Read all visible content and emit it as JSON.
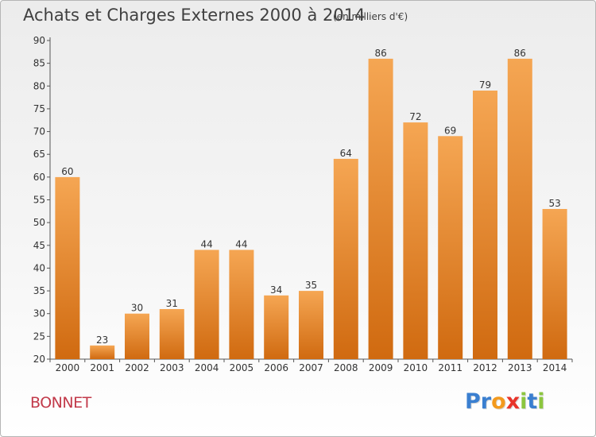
{
  "header": {
    "title": "Achats et Charges Externes 2000 à 2014",
    "subtitle": "(en milliers d'€)"
  },
  "footer": {
    "commune": "BONNET",
    "logo_letters": [
      "P",
      "r",
      "o",
      "x",
      "i",
      "t",
      "i"
    ]
  },
  "colors": {
    "bar_top": "#f5a653",
    "bar_bottom": "#d06a10",
    "title": "#404040",
    "commune": "#c23a4a",
    "logo": [
      "#3a7fd0",
      "#3a7fd0",
      "#f39a1e",
      "#e8342a",
      "#8cc63f",
      "#3a7fd0",
      "#8cc63f"
    ]
  },
  "chart_data": {
    "type": "bar",
    "title": "Achats et Charges Externes 2000 à 2014",
    "subtitle": "(en milliers d'€)",
    "categories": [
      "2000",
      "2001",
      "2002",
      "2003",
      "2004",
      "2005",
      "2006",
      "2007",
      "2008",
      "2009",
      "2010",
      "2011",
      "2012",
      "2013",
      "2014"
    ],
    "values": [
      60,
      23,
      30,
      31,
      44,
      44,
      34,
      35,
      64,
      86,
      72,
      69,
      79,
      86,
      53
    ],
    "ylim": [
      20,
      90
    ],
    "yticks": [
      20,
      25,
      30,
      35,
      40,
      45,
      50,
      55,
      60,
      65,
      70,
      75,
      80,
      85,
      90
    ],
    "grid": false,
    "data_labels": true
  }
}
